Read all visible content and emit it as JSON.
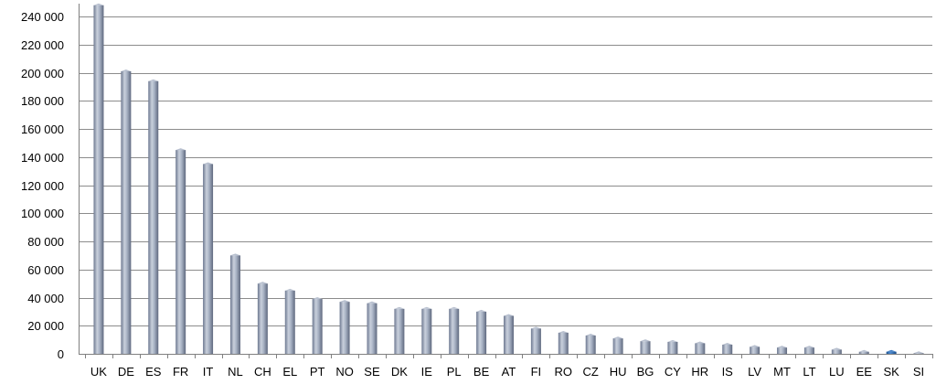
{
  "chart_data": {
    "type": "bar",
    "categories": [
      "UK",
      "DE",
      "ES",
      "FR",
      "IT",
      "NL",
      "CH",
      "EL",
      "PT",
      "NO",
      "SE",
      "DK",
      "IE",
      "PL",
      "BE",
      "AT",
      "FI",
      "RO",
      "CZ",
      "HU",
      "BG",
      "CY",
      "HR",
      "IS",
      "LV",
      "MT",
      "LT",
      "LU",
      "EE",
      "SK",
      "SI"
    ],
    "values": [
      248000,
      201000,
      194000,
      145000,
      135000,
      70000,
      50000,
      45000,
      39000,
      37000,
      36000,
      32000,
      32000,
      32000,
      30000,
      27000,
      18000,
      15000,
      13000,
      11000,
      9000,
      8500,
      7500,
      6500,
      5000,
      4500,
      4500,
      3000,
      1500,
      1500,
      500
    ],
    "highlight_category": "SK",
    "ylim": [
      0,
      240000
    ],
    "yticks": [
      0,
      20000,
      40000,
      60000,
      80000,
      100000,
      120000,
      140000,
      160000,
      180000,
      200000,
      220000,
      240000
    ],
    "ytick_labels": [
      "0",
      "20 000",
      "40 000",
      "60 000",
      "80 000",
      "100 000",
      "120 000",
      "140 000",
      "160 000",
      "180 000",
      "200 000",
      "220 000",
      "240 000"
    ],
    "title": "",
    "xlabel": "",
    "ylabel": "",
    "grid": true,
    "colors": {
      "bar": "#9aa6bc",
      "bar_highlight": "#2e6db4",
      "grid": "#8c8c8c",
      "axis": "#808080"
    }
  }
}
